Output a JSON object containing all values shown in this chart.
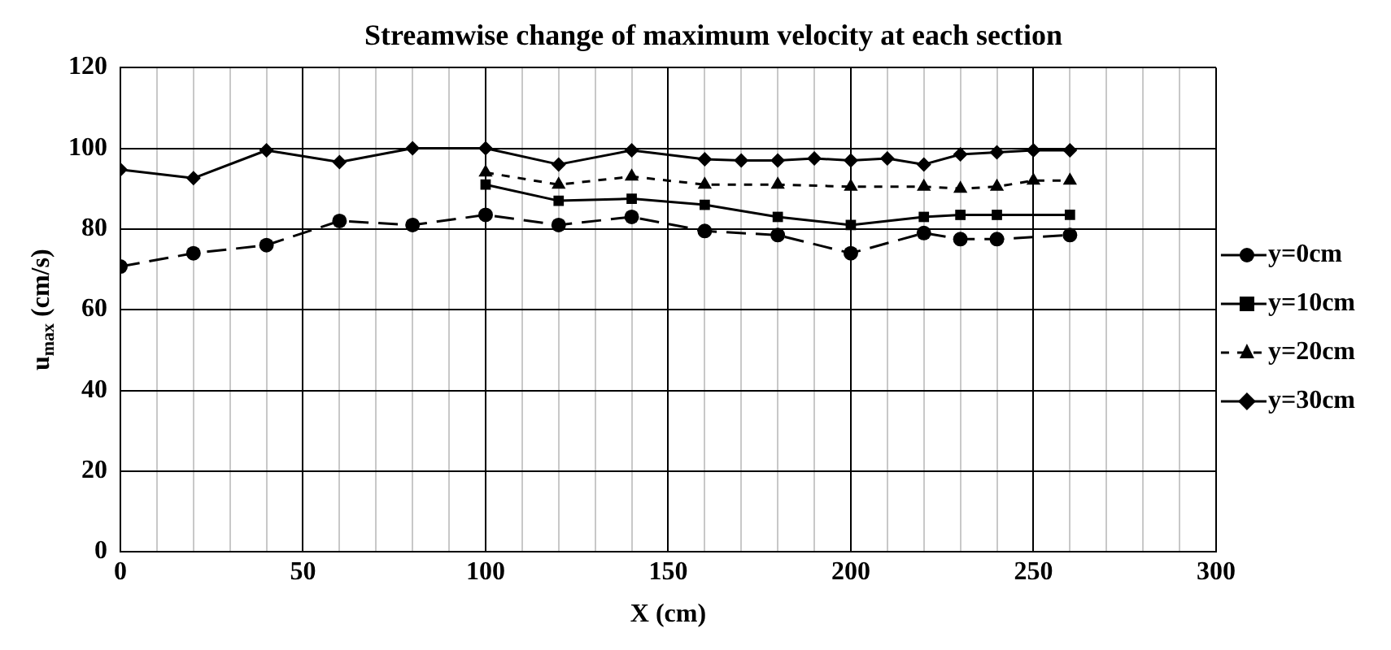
{
  "chart_data": {
    "type": "line",
    "title": "Streamwise change of maximum velocity at each section",
    "xlabel": "X (cm)",
    "ylabel": "u$_{max}$ (cm/s)",
    "xlim": [
      0,
      300
    ],
    "xticks": [
      0,
      {
        "value": 10,
        "label": null
      },
      {
        "value": 20,
        "label": null
      },
      {
        "value": 30,
        "label": null
      },
      {
        "value": 40,
        "label": null
      },
      50,
      {
        "value": 60,
        "label": null
      },
      {
        "value": 70,
        "label": null
      },
      {
        "value": 80,
        "label": null
      },
      {
        "value": 90,
        "label": null
      },
      100,
      {
        "value": 110,
        "label": null
      },
      {
        "value": 120,
        "label": null
      },
      {
        "value": 130,
        "label": null
      },
      {
        "value": 140,
        "label": null
      },
      150,
      {
        "value": 160,
        "label": null
      },
      {
        "value": 170,
        "label": null
      },
      {
        "value": 180,
        "label": null
      },
      {
        "value": 190,
        "label": null
      },
      200,
      {
        "value": 210,
        "label": null
      },
      {
        "value": 220,
        "label": null
      },
      {
        "value": 230,
        "label": null
      },
      {
        "value": 240,
        "label": null
      },
      250,
      {
        "value": 260,
        "label": null
      },
      {
        "value": 270,
        "label": null
      },
      {
        "value": 280,
        "label": null
      },
      {
        "value": 290,
        "label": null
      },
      300
    ],
    "ylim": [
      0,
      120
    ],
    "yticks": [
      0,
      20,
      40,
      60,
      80,
      100,
      120
    ],
    "grid": true,
    "legend": "right",
    "series": [
      {
        "name": "y=0cm",
        "color": "#000000",
        "marker": "circle",
        "line_style": "dashed",
        "x": [
          0,
          20,
          40,
          60,
          80,
          100,
          120,
          140,
          160,
          180,
          200,
          220,
          230,
          240,
          260
        ],
        "values": [
          70.7,
          74,
          76,
          82,
          81,
          83.5,
          81,
          83,
          79.5,
          78.5,
          74,
          79,
          77.5,
          77.5,
          78.5
        ]
      },
      {
        "name": "y=10cm",
        "color": "#000000",
        "marker": "square",
        "line_style": "solid",
        "x": [
          100,
          120,
          140,
          160,
          180,
          200,
          220,
          230,
          240,
          260
        ],
        "values": [
          91,
          87,
          87.5,
          86,
          83,
          81,
          83,
          83.5,
          83.5,
          83.5
        ]
      },
      {
        "name": "y=20cm",
        "color": "#000000",
        "marker": "triangle",
        "line_style": "dotted",
        "x": [
          100,
          120,
          140,
          160,
          180,
          200,
          220,
          230,
          240,
          250,
          260
        ],
        "values": [
          94,
          91,
          93,
          91,
          91,
          90.5,
          90.5,
          90,
          90.5,
          92,
          92
        ]
      },
      {
        "name": "y=30cm",
        "color": "#000000",
        "marker": "diamond",
        "line_style": "solid",
        "x": [
          0,
          20,
          40,
          60,
          80,
          100,
          120,
          140,
          160,
          170,
          180,
          190,
          200,
          210,
          220,
          230,
          240,
          250,
          260
        ],
        "values": [
          94.7,
          92.6,
          99.5,
          96.6,
          100,
          100,
          96,
          99.5,
          97.3,
          97,
          97,
          97.5,
          97,
          97.5,
          96,
          98.5,
          99,
          99.5,
          99.5
        ]
      }
    ]
  }
}
